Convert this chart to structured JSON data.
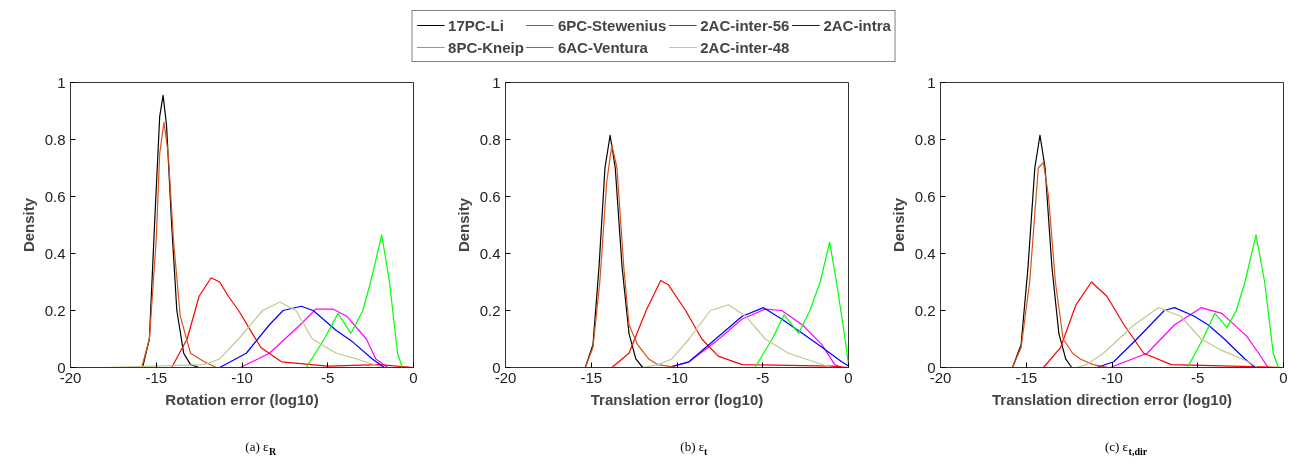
{
  "chart_data": [
    {
      "type": "line",
      "title": "(a) ε$_{R}$",
      "xlabel": "Rotation error (log10)",
      "ylabel": "Density",
      "xlim": [
        -20,
        0
      ],
      "ylim": [
        0,
        1
      ],
      "xticks": [
        -20,
        -15,
        -10,
        -5,
        0
      ],
      "yticks": [
        0,
        0.2,
        0.4,
        0.6,
        0.8,
        1
      ],
      "grid": false,
      "legend": "top",
      "series": [
        {
          "name": "17PC-Li",
          "color": "#000000",
          "x": [
            -18,
            -15.8,
            -15.4,
            -15.1,
            -14.8,
            -14.6,
            -14.4,
            -14.1,
            -13.8,
            -13.4,
            -13,
            -12.5,
            0
          ],
          "values": [
            0,
            0,
            0.1,
            0.5,
            0.88,
            0.955,
            0.85,
            0.5,
            0.2,
            0.05,
            0.01,
            0,
            0
          ]
        },
        {
          "name": "6PC-Stewenius",
          "color": "#ff00ff",
          "x": [
            -18,
            -10.1,
            -8.4,
            -6.6,
            -5.7,
            -4.7,
            -3.9,
            -2.75,
            -2.2,
            -1.5,
            0
          ],
          "values": [
            0,
            0,
            0.05,
            0.15,
            0.205,
            0.205,
            0.18,
            0.1,
            0.03,
            0,
            0
          ]
        },
        {
          "name": "2AC-inter-56",
          "color": "#ff0000",
          "x": [
            -18,
            -14.1,
            -13.2,
            -12.5,
            -11.8,
            -11.3,
            -10.8,
            -10.2,
            -8.9,
            -7.7,
            -5,
            -2,
            0
          ],
          "values": [
            0,
            0,
            0.1,
            0.25,
            0.315,
            0.3,
            0.25,
            0.2,
            0.07,
            0.02,
            0.005,
            0.01,
            0
          ]
        },
        {
          "name": "2AC-intra",
          "color": "#0000ff",
          "x": [
            -18,
            -11.3,
            -9.75,
            -8.4,
            -7.6,
            -6.55,
            -5.85,
            -4.5,
            -3.55,
            -2.4,
            -1.7,
            0
          ],
          "values": [
            0,
            0,
            0.05,
            0.15,
            0.2,
            0.215,
            0.2,
            0.13,
            0.09,
            0.03,
            0,
            0
          ]
        },
        {
          "name": "8PC-Kneip",
          "color": "#00ff00",
          "x": [
            -18,
            -6.25,
            -5.2,
            -4.4,
            -3.65,
            -2.95,
            -2.5,
            -1.85,
            -1.4,
            -0.93,
            -0.65,
            0
          ],
          "values": [
            0,
            0,
            0.1,
            0.19,
            0.12,
            0.2,
            0.3,
            0.465,
            0.3,
            0.05,
            0,
            0
          ]
        },
        {
          "name": "6AC-Ventura",
          "color": "#d95319",
          "x": [
            -18,
            -15.85,
            -15.4,
            -15.0,
            -14.8,
            -14.55,
            -14.3,
            -14.0,
            -13.6,
            -13.0,
            -12.2,
            -11.5,
            0
          ],
          "values": [
            0,
            0,
            0.1,
            0.45,
            0.75,
            0.86,
            0.75,
            0.45,
            0.18,
            0.05,
            0.02,
            0,
            0
          ]
        },
        {
          "name": "2AC-inter-48",
          "color": "#bfc98f",
          "x": [
            -18,
            -12.2,
            -11.3,
            -10.2,
            -8.8,
            -7.8,
            -6.85,
            -5.9,
            -4.5,
            -3.3,
            -1.8,
            0
          ],
          "values": [
            0,
            0.01,
            0.03,
            0.1,
            0.2,
            0.23,
            0.2,
            0.1,
            0.05,
            0.03,
            0,
            0
          ]
        }
      ]
    },
    {
      "type": "line",
      "title": "(b) ε$_{t}$",
      "xlabel": "Translation error (log10)",
      "ylabel": "Density",
      "xlim": [
        -20,
        0
      ],
      "ylim": [
        0,
        1
      ],
      "xticks": [
        -20,
        -15,
        -10,
        -5,
        0
      ],
      "yticks": [
        0,
        0.2,
        0.4,
        0.6,
        0.8,
        1
      ],
      "grid": false,
      "series": [
        {
          "color": "#000000",
          "x": [
            -18,
            -15.35,
            -14.9,
            -14.55,
            -14.2,
            -13.9,
            -13.6,
            -13.2,
            -12.8,
            -12.4,
            -12.0,
            0
          ],
          "values": [
            0,
            0,
            0.08,
            0.35,
            0.7,
            0.815,
            0.7,
            0.35,
            0.12,
            0.03,
            0,
            0
          ]
        },
        {
          "color": "#ff00ff",
          "x": [
            -18,
            -10.5,
            -9.3,
            -7.75,
            -6.2,
            -4.85,
            -3.9,
            -2.7,
            -1.55,
            -0.8,
            -0.4,
            0
          ],
          "values": [
            0,
            0,
            0.02,
            0.09,
            0.17,
            0.205,
            0.2,
            0.15,
            0.08,
            0.01,
            0,
            0
          ]
        },
        {
          "color": "#ff0000",
          "x": [
            -18,
            -13.8,
            -12.8,
            -11.8,
            -10.95,
            -10.5,
            -9.5,
            -8.55,
            -7.6,
            -6.2,
            -1,
            0
          ],
          "values": [
            0,
            0,
            0.05,
            0.2,
            0.305,
            0.29,
            0.2,
            0.1,
            0.04,
            0.01,
            0.005,
            0
          ]
        },
        {
          "color": "#0000ff",
          "x": [
            -18,
            -10.5,
            -9.3,
            -7.75,
            -6.2,
            -4.95,
            -3.9,
            -2.7,
            -1.75,
            -0.4,
            0
          ],
          "values": [
            0,
            0,
            0.02,
            0.1,
            0.18,
            0.21,
            0.17,
            0.12,
            0.08,
            0.02,
            0.005
          ]
        },
        {
          "color": "#00ff00",
          "x": [
            -18,
            -5.45,
            -4.45,
            -3.75,
            -2.9,
            -2.25,
            -1.65,
            -1.1,
            -0.7,
            -0.2,
            0
          ],
          "values": [
            0,
            0,
            0.1,
            0.185,
            0.12,
            0.2,
            0.3,
            0.44,
            0.3,
            0.1,
            0.01
          ]
        },
        {
          "color": "#d95319",
          "x": [
            -18,
            -15.35,
            -14.9,
            -14.5,
            -14.1,
            -13.8,
            -13.5,
            -13.1,
            -12.8,
            -12.3,
            -11.65,
            -11.1,
            -10,
            0
          ],
          "values": [
            0,
            0,
            0.07,
            0.3,
            0.65,
            0.78,
            0.7,
            0.35,
            0.15,
            0.08,
            0.03,
            0.01,
            0,
            0
          ]
        },
        {
          "color": "#bfc98f",
          "x": [
            -18,
            -12,
            -11.1,
            -10.3,
            -9.3,
            -8.05,
            -7.0,
            -6.0,
            -4.85,
            -3.5,
            -2.5,
            -1.0,
            0
          ],
          "values": [
            0,
            0,
            0.01,
            0.03,
            0.1,
            0.2,
            0.22,
            0.18,
            0.1,
            0.05,
            0.03,
            0,
            0
          ]
        }
      ]
    },
    {
      "type": "line",
      "title": "(c) ε$_{t,dir}$",
      "xlabel": "Translation direction error (log10)",
      "ylabel": "Density",
      "xlim": [
        -20,
        0
      ],
      "ylim": [
        0,
        1
      ],
      "xticks": [
        -20,
        -15,
        -10,
        -5,
        0
      ],
      "yticks": [
        0,
        0.2,
        0.4,
        0.6,
        0.8,
        1
      ],
      "grid": false,
      "series": [
        {
          "color": "#000000",
          "x": [
            -18,
            -15.8,
            -15.3,
            -14.9,
            -14.5,
            -14.2,
            -13.9,
            -13.5,
            -13.1,
            -12.7,
            -12.35,
            0
          ],
          "values": [
            0,
            0,
            0.08,
            0.35,
            0.7,
            0.815,
            0.7,
            0.35,
            0.12,
            0.03,
            0,
            0
          ]
        },
        {
          "color": "#ff00ff",
          "x": [
            -18,
            -10.1,
            -7.95,
            -6.35,
            -4.8,
            -3.6,
            -2.15,
            -1.45,
            -0.9,
            0
          ],
          "values": [
            0,
            0,
            0.05,
            0.15,
            0.21,
            0.19,
            0.11,
            0.05,
            0,
            0
          ]
        },
        {
          "color": "#ff0000",
          "x": [
            -18,
            -14,
            -13,
            -12.1,
            -11.2,
            -10.3,
            -9.3,
            -8.15,
            -6.55,
            0
          ],
          "values": [
            0,
            0,
            0.07,
            0.22,
            0.3,
            0.25,
            0.15,
            0.05,
            0.01,
            0
          ]
        },
        {
          "color": "#0000ff",
          "x": [
            -18,
            -10.9,
            -9.9,
            -8.55,
            -6.95,
            -6.35,
            -5.2,
            -4.4,
            -3.45,
            -2.25,
            -1.65,
            0
          ],
          "values": [
            0,
            0,
            0.02,
            0.1,
            0.2,
            0.21,
            0.18,
            0.15,
            0.1,
            0.03,
            0,
            0
          ]
        },
        {
          "color": "#00ff00",
          "x": [
            -18,
            -5.6,
            -4.7,
            -4.0,
            -3.3,
            -2.75,
            -2.25,
            -1.6,
            -1.1,
            -0.6,
            -0.3,
            0
          ],
          "values": [
            0,
            0,
            0.1,
            0.19,
            0.14,
            0.2,
            0.3,
            0.465,
            0.3,
            0.05,
            0,
            0
          ]
        },
        {
          "color": "#d95319",
          "x": [
            -18,
            -15.8,
            -15.3,
            -14.8,
            -14.3,
            -14.0,
            -13.7,
            -13.3,
            -12.85,
            -12.3,
            -11.85,
            -11.1,
            -10.2,
            0
          ],
          "values": [
            0,
            0,
            0.07,
            0.3,
            0.7,
            0.72,
            0.6,
            0.3,
            0.1,
            0.05,
            0.03,
            0.01,
            0,
            0
          ]
        },
        {
          "color": "#bfc98f",
          "x": [
            -18,
            -12.05,
            -11.5,
            -10.5,
            -8.7,
            -7.3,
            -6.0,
            -4.8,
            -3.6,
            -2.05,
            -1.5,
            0
          ],
          "values": [
            0,
            0,
            0.01,
            0.05,
            0.15,
            0.21,
            0.18,
            0.1,
            0.06,
            0.02,
            0,
            0
          ]
        }
      ]
    }
  ]
}
